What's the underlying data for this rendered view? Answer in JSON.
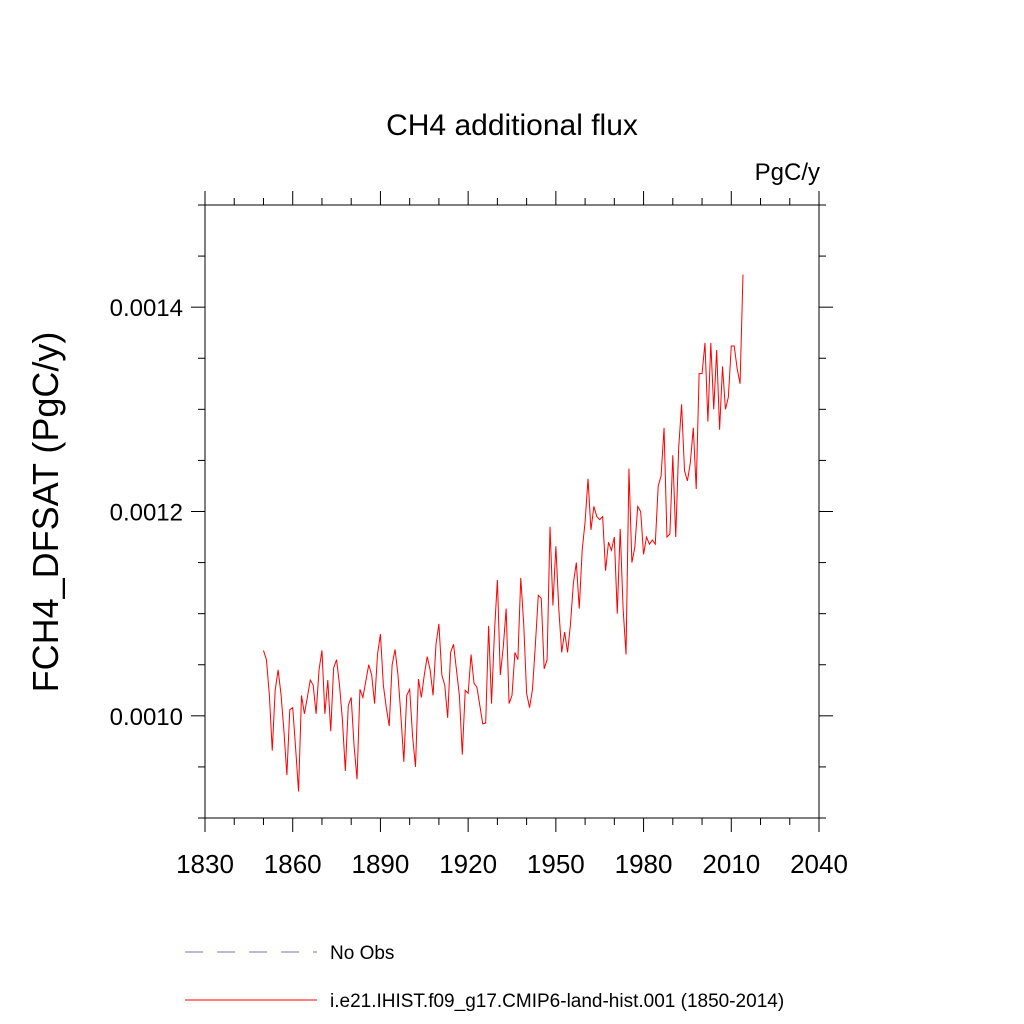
{
  "chart_data": {
    "type": "line",
    "title": "CH4 additional flux",
    "units": "PgC/y",
    "ylabel": "FCH4_DFSAT  (PgC/y)",
    "xlabel": "",
    "xlim": [
      1830,
      2040
    ],
    "ylim": [
      0.0009,
      0.0015
    ],
    "xticks": [
      1830,
      1860,
      1890,
      1920,
      1950,
      1980,
      2010,
      2040
    ],
    "xticklabels": [
      "1830",
      "1860",
      "1890",
      "1920",
      "1950",
      "1980",
      "2010",
      "2040"
    ],
    "yticks": [
      0.001,
      0.0012,
      0.0014
    ],
    "yticklabels": [
      "0.0010",
      "0.0012",
      "0.0014"
    ],
    "yminor_step": 5e-05,
    "xminor_step": 10,
    "grid": false,
    "legend_position": "bottom",
    "series": [
      {
        "name": "i.e21.IHIST.f09_g17.CMIP6-land-hist.001 (1850-2014)",
        "color": "#ff0000",
        "style": "solid",
        "x_start": 1850,
        "values": [
          0.001064,
          0.001055,
          0.001021,
          0.000966,
          0.001025,
          0.001045,
          0.001021,
          0.000985,
          0.000942,
          0.001006,
          0.001008,
          0.000968,
          0.000926,
          0.00102,
          0.001002,
          0.001018,
          0.001035,
          0.00103,
          0.001002,
          0.001045,
          0.001064,
          0.001002,
          0.001035,
          0.000985,
          0.001047,
          0.001055,
          0.00103,
          0.000996,
          0.000946,
          0.00101,
          0.001018,
          0.00097,
          0.000938,
          0.001026,
          0.001018,
          0.001034,
          0.00105,
          0.00104,
          0.001012,
          0.00106,
          0.00108,
          0.00103,
          0.001008,
          0.00099,
          0.00105,
          0.001065,
          0.00104,
          0.001,
          0.000955,
          0.00102,
          0.001026,
          0.00098,
          0.00095,
          0.001036,
          0.001018,
          0.00104,
          0.001058,
          0.001045,
          0.00102,
          0.00107,
          0.00109,
          0.00104,
          0.00103,
          0.000998,
          0.001062,
          0.00107,
          0.001045,
          0.00102,
          0.000962,
          0.001025,
          0.001022,
          0.00106,
          0.001032,
          0.001028,
          0.00101,
          0.000992,
          0.000993,
          0.001088,
          0.001012,
          0.001082,
          0.001133,
          0.00104,
          0.001067,
          0.001105,
          0.001012,
          0.00102,
          0.001062,
          0.001055,
          0.001135,
          0.00109,
          0.001022,
          0.001008,
          0.001026,
          0.00107,
          0.001118,
          0.001115,
          0.001046,
          0.001055,
          0.001185,
          0.001108,
          0.001166,
          0.001105,
          0.001062,
          0.001082,
          0.001062,
          0.00109,
          0.00113,
          0.00115,
          0.001105,
          0.001162,
          0.00119,
          0.001232,
          0.001182,
          0.001205,
          0.001195,
          0.001192,
          0.001195,
          0.001142,
          0.00117,
          0.001162,
          0.001175,
          0.0011,
          0.001183,
          0.001105,
          0.00106,
          0.001242,
          0.00115,
          0.001165,
          0.001205,
          0.0012,
          0.001158,
          0.001175,
          0.001168,
          0.001172,
          0.001168,
          0.001225,
          0.001235,
          0.001282,
          0.001175,
          0.001178,
          0.001255,
          0.001175,
          0.001262,
          0.001305,
          0.00124,
          0.00123,
          0.001248,
          0.001282,
          0.001222,
          0.001335,
          0.001335,
          0.001365,
          0.001288,
          0.001365,
          0.0013,
          0.001358,
          0.00128,
          0.001342,
          0.0013,
          0.001312,
          0.001362,
          0.001362,
          0.00134,
          0.001325,
          0.001432
        ]
      },
      {
        "name": "No Obs",
        "color": "#7070c0",
        "style": "dashed",
        "values": []
      }
    ]
  }
}
